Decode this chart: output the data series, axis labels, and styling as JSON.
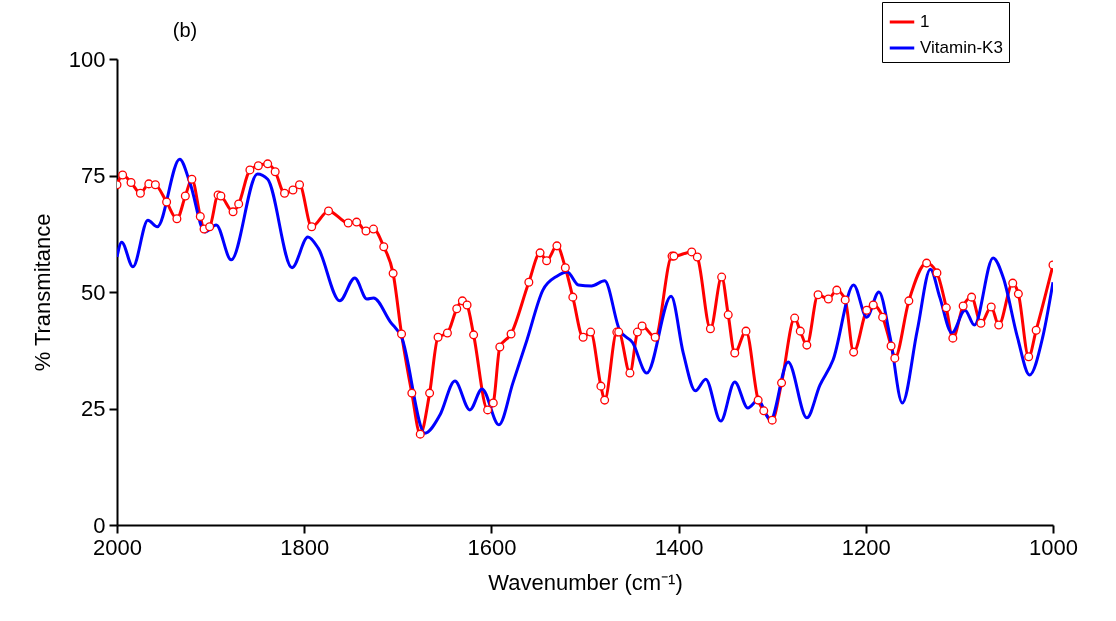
{
  "chart_data": {
    "type": "line",
    "xlabel": "Wavenumber (cm⁻¹)",
    "ylabel": "% Transmitance",
    "annotations": [
      "(b)"
    ],
    "xlim": [
      2000,
      1000
    ],
    "ylim": [
      0,
      100
    ],
    "xticks": [
      2000,
      1800,
      1600,
      1400,
      1200,
      1000
    ],
    "yticks": [
      0,
      25,
      50,
      75,
      100
    ],
    "grid": false,
    "legend": "top right",
    "series": [
      {
        "name": "1",
        "color": "#ff0000",
        "marker": "circle",
        "x": [
          2000,
          1994,
          1985,
          1975,
          1966,
          1959,
          1947,
          1936,
          1927,
          1920,
          1911,
          1907,
          1901,
          1892,
          1889,
          1876,
          1870,
          1858,
          1849,
          1839,
          1831,
          1821,
          1812,
          1805,
          1792,
          1774,
          1753,
          1744,
          1734,
          1726,
          1715,
          1705,
          1696,
          1685,
          1676,
          1666,
          1657,
          1647,
          1637,
          1631,
          1626,
          1619,
          1604,
          1598,
          1591,
          1579,
          1560,
          1548,
          1541,
          1530,
          1521,
          1513,
          1502,
          1494,
          1483,
          1479,
          1466,
          1464,
          1452,
          1444,
          1439,
          1425,
          1407,
          1405,
          1386,
          1380,
          1366,
          1354,
          1347,
          1340,
          1328,
          1315,
          1309,
          1300,
          1290,
          1276,
          1270,
          1263,
          1251,
          1240,
          1231,
          1222,
          1213,
          1199,
          1192,
          1182,
          1173,
          1169,
          1154,
          1135,
          1124,
          1114,
          1107,
          1096,
          1087,
          1077,
          1066,
          1058,
          1043,
          1037,
          1026,
          1018,
          1000
        ],
        "values": [
          73,
          75.1,
          73.5,
          71.2,
          73.2,
          73,
          69.3,
          65.7,
          70.6,
          74.2,
          66.2,
          63.5,
          64,
          70.8,
          70.6,
          67.2,
          68.9,
          76.2,
          77.1,
          77.5,
          75.8,
          71.2,
          71.9,
          73,
          64,
          67.4,
          64.8,
          65,
          63.1,
          63.5,
          59.7,
          54,
          41,
          28.3,
          19.5,
          28.3,
          40.3,
          41.2,
          46.4,
          48.1,
          47.2,
          40.8,
          24.7,
          26.2,
          38.2,
          41,
          52.1,
          58.4,
          56.7,
          59.9,
          55.2,
          48.9,
          40.3,
          41.4,
          29.8,
          26.8,
          41.4,
          41.4,
          32.6,
          41.4,
          42.7,
          40.3,
          57.7,
          57.7,
          58.6,
          57.5,
          42.1,
          53.2,
          45.1,
          36.9,
          41.6,
          26.8,
          24.5,
          22.5,
          30.5,
          44.4,
          41.6,
          38.6,
          49.4,
          48.5,
          50.4,
          48.3,
          37.1,
          46.1,
          47.2,
          44.6,
          38.4,
          35.8,
          48.1,
          56.2,
          54.1,
          46.6,
          40.1,
          47,
          48.9,
          43.3,
          46.8,
          42.9,
          51.9,
          49.6,
          36.1,
          41.8,
          55.8
        ]
      },
      {
        "name": "Vitamin-K3",
        "color": "#0000ff",
        "marker": "none",
        "x": [
          2000,
          1995,
          1983,
          1967,
          1957,
          1933,
          1922,
          1906,
          1894,
          1878,
          1850,
          1839,
          1813,
          1796,
          1785,
          1762,
          1746,
          1733,
          1726,
          1708,
          1696,
          1671,
          1655,
          1639,
          1623,
          1610,
          1592,
          1577,
          1562,
          1545,
          1530,
          1519,
          1507,
          1493,
          1479,
          1463,
          1449,
          1434,
          1408,
          1395,
          1382,
          1371,
          1355,
          1340,
          1326,
          1315,
          1302,
          1283,
          1263,
          1249,
          1235,
          1213,
          1199,
          1186,
          1174,
          1161,
          1145,
          1131,
          1121,
          1108,
          1094,
          1084,
          1064,
          1053,
          1038,
          1025,
          1011,
          1000
        ],
        "values": [
          57.5,
          60.7,
          55.4,
          65.4,
          64,
          78.5,
          73.4,
          62.9,
          64.4,
          56.9,
          75.3,
          74.2,
          55.2,
          61.8,
          59.4,
          48.1,
          53,
          48.5,
          48.7,
          43.6,
          40.3,
          19.7,
          23.6,
          30.9,
          24.7,
          29.2,
          21.5,
          30.5,
          39.7,
          50.4,
          53.4,
          54.3,
          51.5,
          51.3,
          52.4,
          41.8,
          39.1,
          32.6,
          49.1,
          36.9,
          28.8,
          31.3,
          22.3,
          30.7,
          25.1,
          26.8,
          22.5,
          35,
          23,
          30,
          35.4,
          51.5,
          44.6,
          50,
          40.3,
          26.2,
          41.8,
          54.9,
          48.9,
          41.2,
          46.1,
          42.9,
          57.3,
          53,
          40.3,
          32.2,
          40.3,
          52.1
        ]
      }
    ]
  }
}
